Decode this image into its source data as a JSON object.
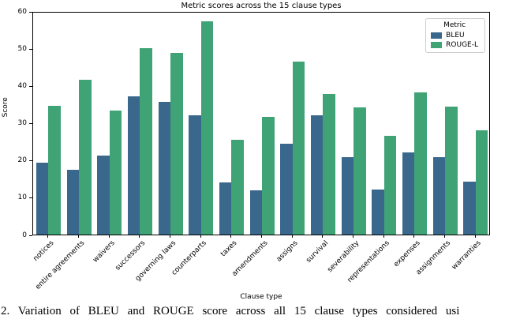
{
  "chart_data": {
    "type": "bar",
    "title": "Metric scores across the 15 clause types",
    "xlabel": "Clause type",
    "ylabel": "Score",
    "ylim": [
      0,
      60
    ],
    "yticks": [
      0,
      10,
      20,
      30,
      40,
      50,
      60
    ],
    "grid": false,
    "legend_title": "Metric",
    "legend_position": "upper right",
    "categories": [
      "notices",
      "entire agreements",
      "waivers",
      "successors",
      "governing laws",
      "counterparts",
      "taxes",
      "amendments",
      "assigns",
      "survival",
      "severability",
      "representations",
      "expenses",
      "assignments",
      "warranties"
    ],
    "series": [
      {
        "name": "BLEU",
        "color": "#3a688c",
        "values": [
          19.3,
          17.4,
          21.3,
          37.2,
          35.6,
          32.0,
          14.1,
          11.8,
          24.3,
          32.0,
          20.7,
          12.2,
          22.0,
          20.7,
          14.3
        ]
      },
      {
        "name": "ROUGE-L",
        "color": "#40a375",
        "values": [
          34.6,
          41.5,
          33.3,
          50.0,
          48.7,
          57.3,
          25.5,
          31.7,
          46.5,
          37.8,
          34.2,
          26.6,
          38.1,
          34.3,
          28.0
        ]
      }
    ]
  },
  "caption": "2. Variation of BLEU and ROUGE score across all 15 clause types considered usi"
}
